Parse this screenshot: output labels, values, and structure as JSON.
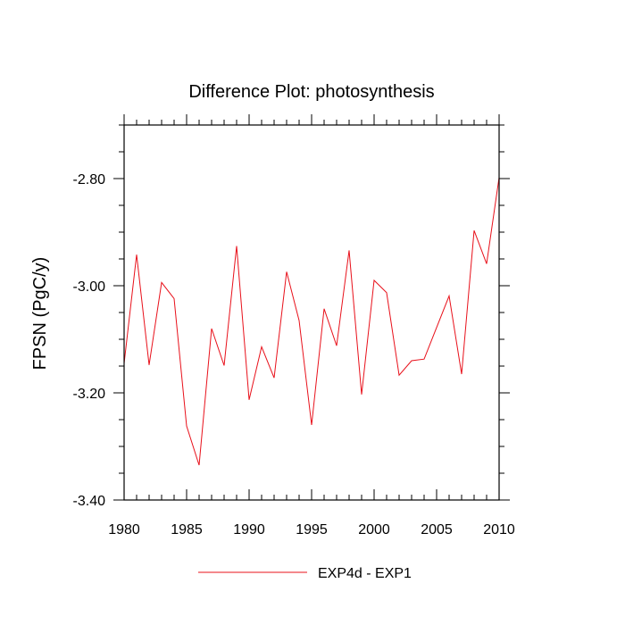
{
  "chart_data": {
    "type": "line",
    "title": "Difference Plot: photosynthesis",
    "xlabel": "",
    "ylabel": "FPSN  (PgC/y)",
    "xlim": [
      1980,
      2010
    ],
    "ylim": [
      -3.4,
      -2.7
    ],
    "x_ticks": [
      1980,
      1985,
      1990,
      1995,
      2000,
      2005,
      2010
    ],
    "x_tick_labels": [
      "1980",
      "1985",
      "1990",
      "1995",
      "2000",
      "2005",
      "2010"
    ],
    "y_ticks": [
      -3.4,
      -3.2,
      -3.0,
      -2.8
    ],
    "y_tick_labels": [
      "-3.40",
      "-3.20",
      "-3.00",
      "-2.80"
    ],
    "legend_position": "bottom",
    "series": [
      {
        "name": "EXP4d - EXP1",
        "color": "#e8101a",
        "x": [
          1980,
          1981,
          1982,
          1983,
          1984,
          1985,
          1986,
          1987,
          1988,
          1989,
          1990,
          1991,
          1992,
          1993,
          1994,
          1995,
          1996,
          1997,
          1998,
          1999,
          2000,
          2001,
          2002,
          2003,
          2004,
          2005,
          2006,
          2007,
          2008,
          2009,
          2010
        ],
        "values": [
          -3.145,
          -2.942,
          -3.148,
          -2.994,
          -3.024,
          -3.262,
          -3.335,
          -3.08,
          -3.149,
          -2.926,
          -3.213,
          -3.114,
          -3.172,
          -2.974,
          -3.065,
          -3.26,
          -3.043,
          -3.112,
          -2.934,
          -3.203,
          -2.99,
          -3.013,
          -3.167,
          -3.14,
          -3.137,
          -3.078,
          -3.019,
          -3.165,
          -2.897,
          -2.959,
          -2.798
        ]
      }
    ]
  }
}
